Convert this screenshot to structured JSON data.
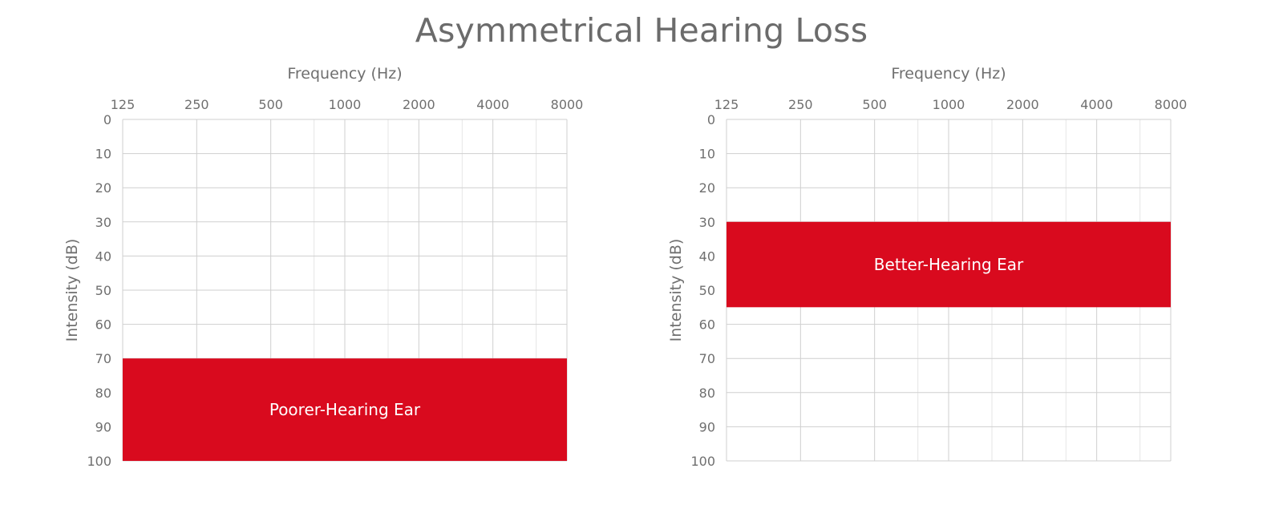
{
  "title": "Asymmetrical Hearing Loss",
  "colors": {
    "band": "#d90a1e",
    "grid_major": "#cfcfcf",
    "grid_minor": "#e6e6e6",
    "text": "#6f6f6f"
  },
  "chart_data": [
    {
      "type": "area",
      "xlabel": "Frequency (Hz)",
      "ylabel": "Intensity (dB)",
      "x_scale": "log2",
      "x_ticks": [
        125,
        250,
        500,
        1000,
        2000,
        4000,
        8000
      ],
      "x_minor_ticks": [
        750,
        1500,
        3000,
        6000
      ],
      "y_ticks": [
        0,
        10,
        20,
        30,
        40,
        50,
        60,
        70,
        80,
        90,
        100
      ],
      "ylim": [
        0,
        100
      ],
      "y_inverted": true,
      "x_axis_position": "top",
      "grid": true,
      "band": {
        "label": "Poorer-Hearing Ear",
        "x": [
          125,
          8000
        ],
        "y": [
          70,
          100
        ]
      }
    },
    {
      "type": "area",
      "xlabel": "Frequency (Hz)",
      "ylabel": "Intensity (dB)",
      "x_scale": "log2",
      "x_ticks": [
        125,
        250,
        500,
        1000,
        2000,
        4000,
        8000
      ],
      "x_minor_ticks": [
        750,
        1500,
        3000,
        6000
      ],
      "y_ticks": [
        0,
        10,
        20,
        30,
        40,
        50,
        60,
        70,
        80,
        90,
        100
      ],
      "ylim": [
        0,
        100
      ],
      "y_inverted": true,
      "x_axis_position": "top",
      "grid": true,
      "band": {
        "label": "Better-Hearing Ear",
        "x": [
          125,
          8000
        ],
        "y": [
          30,
          55
        ]
      }
    }
  ]
}
